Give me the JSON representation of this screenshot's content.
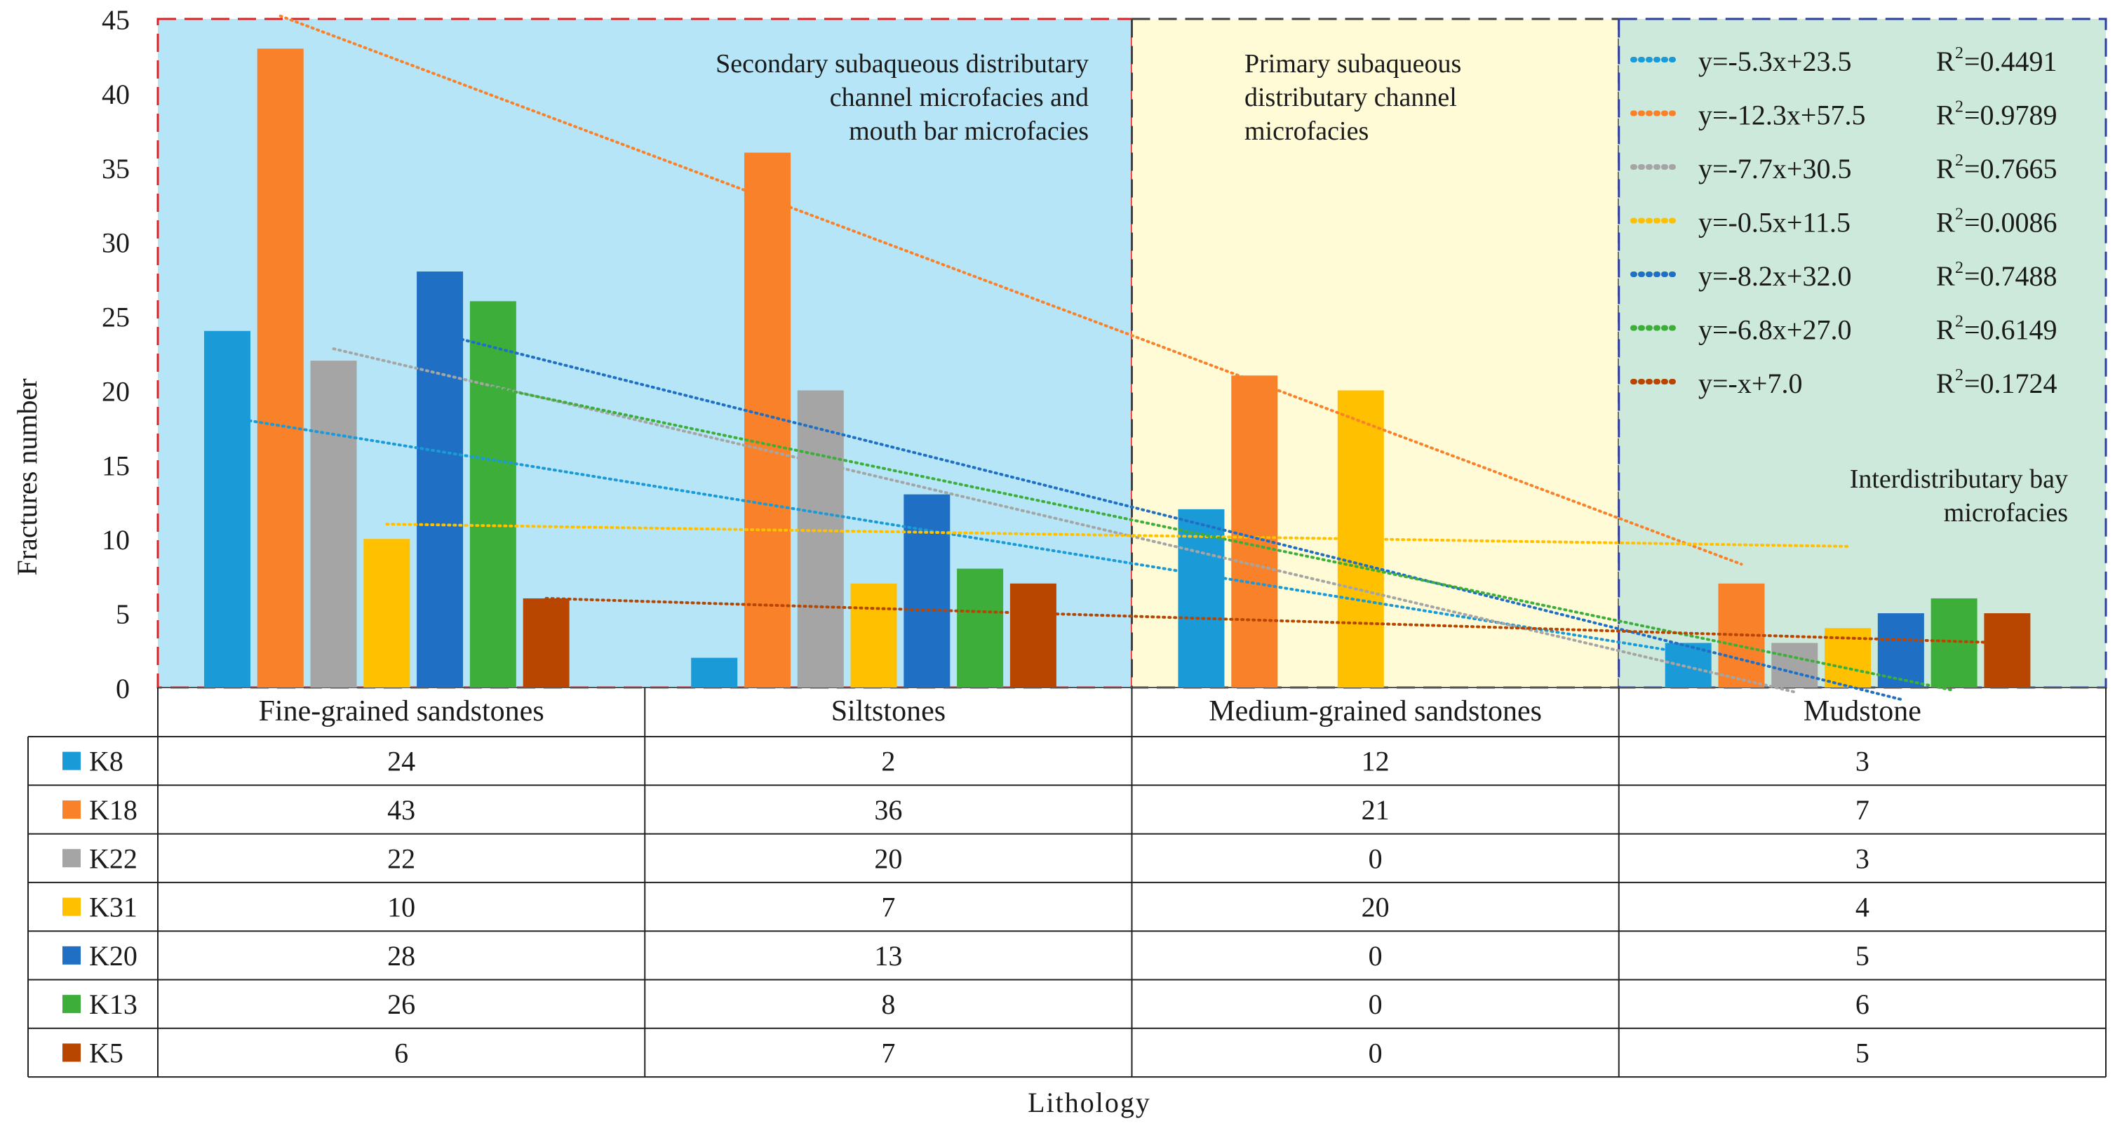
{
  "chart_data": {
    "type": "bar",
    "ylabel": "Fractures number",
    "xlabel": "Lithology",
    "ylim": [
      0,
      45
    ],
    "yticks": [
      "0",
      "5",
      "10",
      "15",
      "20",
      "25",
      "30",
      "35",
      "40",
      "45"
    ],
    "categories": [
      "Fine-grained sandstones",
      "Siltstones",
      "Medium-grained sandstones",
      "Mudstone"
    ],
    "series": [
      {
        "name": "K8",
        "color": "#1a9ad6",
        "values": [
          24,
          2,
          12,
          3
        ]
      },
      {
        "name": "K18",
        "color": "#f9812a",
        "values": [
          43,
          36,
          21,
          7
        ]
      },
      {
        "name": "K22",
        "color": "#a5a5a5",
        "values": [
          22,
          20,
          0,
          3
        ]
      },
      {
        "name": "K31",
        "color": "#ffc000",
        "values": [
          10,
          7,
          20,
          4
        ]
      },
      {
        "name": "K20",
        "color": "#1f6fc5",
        "values": [
          28,
          13,
          0,
          5
        ]
      },
      {
        "name": "K13",
        "color": "#3dae3a",
        "values": [
          26,
          8,
          0,
          6
        ]
      },
      {
        "name": "K5",
        "color": "#b84500",
        "values": [
          6,
          7,
          0,
          5
        ]
      }
    ],
    "trendlines": [
      {
        "series": "K8",
        "color": "#1a9ad6",
        "slope": -5.3,
        "intercept": 23.5,
        "equation": "y=-5.3x+23.5",
        "r2_label": "R",
        "r2_sup": "2",
        "r2_value": "=0.4491"
      },
      {
        "series": "K18",
        "color": "#f9812a",
        "slope": -12.3,
        "intercept": 57.5,
        "equation": "y=-12.3x+57.5",
        "r2_label": "R",
        "r2_sup": "2",
        "r2_value": "=0.9789"
      },
      {
        "series": "K22",
        "color": "#a5a5a5",
        "slope": -7.7,
        "intercept": 30.5,
        "equation": "y=-7.7x+30.5",
        "r2_label": "R",
        "r2_sup": "2",
        "r2_value": "=0.7665"
      },
      {
        "series": "K31",
        "color": "#ffc000",
        "slope": -0.5,
        "intercept": 11.5,
        "equation": "y=-0.5x+11.5",
        "r2_label": "R",
        "r2_sup": "2",
        "r2_value": "=0.0086"
      },
      {
        "series": "K20",
        "color": "#1f6fc5",
        "slope": -8.2,
        "intercept": 32.0,
        "equation": "y=-8.2x+32.0",
        "r2_label": "R",
        "r2_sup": "2",
        "r2_value": "=0.7488"
      },
      {
        "series": "K13",
        "color": "#3dae3a",
        "slope": -6.8,
        "intercept": 27.0,
        "equation": "y=-6.8x+27.0",
        "r2_label": "R",
        "r2_sup": "2",
        "r2_value": "=0.6149"
      },
      {
        "series": "K5",
        "color": "#b84500",
        "slope": -1,
        "intercept": 7.0,
        "equation": "y=-x+7.0",
        "r2_label": "R",
        "r2_sup": "2",
        "r2_value": "=0.1724"
      }
    ],
    "zones": [
      {
        "label_lines": [
          "Secondary subaqueous distributary",
          "channel microfacies and",
          "mouth bar microfacies"
        ],
        "fill": "#b5e5f7",
        "border": "#e02020"
      },
      {
        "label_lines": [
          "Primary subaqueous",
          "distributary channel",
          "microfacies"
        ],
        "fill": "#fffbd6",
        "border": "#404040"
      },
      {
        "label_lines": [
          "Interdistributary bay",
          "microfacies"
        ],
        "fill": "#cde9db",
        "border": "#2c3e9e"
      }
    ]
  }
}
